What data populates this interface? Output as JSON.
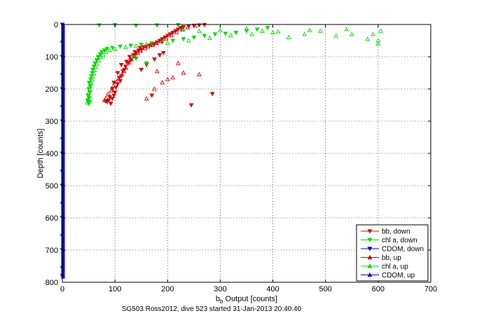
{
  "figure": {
    "caption": "SG503 Ross2012, dive 523 started 31-Jan-2013 20:40:40"
  },
  "colors": {
    "bb": "#dd0000",
    "chla": "#00dd00",
    "cdom": "#0000ff",
    "grid": "#000000",
    "axes": "#000000"
  },
  "chart_data": {
    "type": "scatter",
    "xlabel_main": "b",
    "xlabel_sub": "b",
    "xlabel_rest": " Output [counts]",
    "ylabel": "Depth [counts]",
    "xlim": [
      0,
      700
    ],
    "ylim": [
      0,
      800
    ],
    "y_reversed": true,
    "grid": true,
    "legend_position": "bottom-right",
    "x_ticks": [
      0,
      100,
      200,
      300,
      400,
      500,
      600,
      700
    ],
    "y_ticks": [
      0,
      100,
      200,
      300,
      400,
      500,
      600,
      700,
      800
    ],
    "series": [
      {
        "name": "bb, down",
        "color": "#dd0000",
        "marker": "triangle-down",
        "points": [
          [
            85,
            240
          ],
          [
            88,
            235
          ],
          [
            92,
            245
          ],
          [
            95,
            230
          ],
          [
            82,
            238
          ],
          [
            90,
            225
          ],
          [
            98,
            220
          ],
          [
            100,
            210
          ],
          [
            95,
            200
          ],
          [
            102,
            195
          ],
          [
            105,
            185
          ],
          [
            98,
            180
          ],
          [
            110,
            175
          ],
          [
            108,
            165
          ],
          [
            112,
            160
          ],
          [
            105,
            150
          ],
          [
            115,
            145
          ],
          [
            118,
            140
          ],
          [
            120,
            130
          ],
          [
            112,
            125
          ],
          [
            125,
            120
          ],
          [
            122,
            115
          ],
          [
            130,
            110
          ],
          [
            128,
            100
          ],
          [
            135,
            95
          ],
          [
            140,
            90
          ],
          [
            138,
            85
          ],
          [
            145,
            80
          ],
          [
            150,
            78
          ],
          [
            148,
            72
          ],
          [
            155,
            70
          ],
          [
            160,
            68
          ],
          [
            165,
            65
          ],
          [
            170,
            62
          ],
          [
            175,
            60
          ],
          [
            180,
            55
          ],
          [
            185,
            50
          ],
          [
            190,
            45
          ],
          [
            195,
            40
          ],
          [
            200,
            35
          ],
          [
            205,
            30
          ],
          [
            210,
            25
          ],
          [
            215,
            20
          ],
          [
            220,
            15
          ],
          [
            225,
            10
          ],
          [
            230,
            8
          ],
          [
            240,
            5
          ],
          [
            250,
            3
          ],
          [
            260,
            2
          ],
          [
            270,
            1
          ],
          [
            245,
            250
          ],
          [
            170,
            220
          ],
          [
            285,
            215
          ],
          [
            150,
            140
          ],
          [
            160,
            125
          ],
          [
            175,
            108
          ],
          [
            185,
            95
          ],
          [
            192,
            88
          ]
        ]
      },
      {
        "name": "chl a, down",
        "color": "#00dd00",
        "marker": "triangle-down",
        "points": [
          [
            50,
            245
          ],
          [
            52,
            240
          ],
          [
            48,
            235
          ],
          [
            51,
            228
          ],
          [
            49,
            220
          ],
          [
            52,
            210
          ],
          [
            50,
            200
          ],
          [
            53,
            190
          ],
          [
            51,
            180
          ],
          [
            54,
            170
          ],
          [
            55,
            160
          ],
          [
            57,
            150
          ],
          [
            58,
            140
          ],
          [
            60,
            130
          ],
          [
            62,
            120
          ],
          [
            65,
            110
          ],
          [
            68,
            100
          ],
          [
            72,
            92
          ],
          [
            75,
            85
          ],
          [
            80,
            80
          ],
          [
            85,
            75
          ],
          [
            95,
            72
          ],
          [
            110,
            68
          ],
          [
            130,
            65
          ],
          [
            150,
            62
          ],
          [
            170,
            58
          ],
          [
            190,
            55
          ],
          [
            210,
            50
          ],
          [
            230,
            45
          ],
          [
            250,
            40
          ],
          [
            270,
            35
          ],
          [
            290,
            30
          ],
          [
            310,
            28
          ],
          [
            330,
            25
          ],
          [
            350,
            20
          ],
          [
            370,
            15
          ],
          [
            390,
            10
          ],
          [
            70,
            2
          ],
          [
            100,
            1
          ],
          [
            140,
            3
          ],
          [
            180,
            2
          ],
          [
            220,
            1
          ],
          [
            140,
            105
          ],
          [
            160,
            120
          ],
          [
            135,
            100
          ]
        ]
      },
      {
        "name": "CDOM, down",
        "color": "#0000ff",
        "marker": "triangle-down",
        "points": [
          [
            0,
            0
          ],
          [
            0,
            100
          ],
          [
            0,
            200
          ],
          [
            0,
            300
          ],
          [
            0,
            400
          ],
          [
            0,
            500
          ],
          [
            0,
            600
          ],
          [
            0,
            700
          ],
          [
            0,
            780
          ]
        ]
      },
      {
        "name": "bb, up",
        "color": "#dd0000",
        "marker": "triangle-up",
        "points": [
          [
            80,
            235
          ],
          [
            83,
            228
          ],
          [
            87,
            215
          ],
          [
            93,
            205
          ],
          [
            97,
            190
          ],
          [
            103,
            178
          ],
          [
            107,
            168
          ],
          [
            113,
            155
          ],
          [
            117,
            145
          ],
          [
            121,
            135
          ],
          [
            127,
            118
          ],
          [
            131,
            108
          ],
          [
            137,
            98
          ],
          [
            143,
            88
          ],
          [
            149,
            82
          ],
          [
            157,
            74
          ],
          [
            163,
            69
          ],
          [
            171,
            64
          ],
          [
            179,
            58
          ],
          [
            187,
            52
          ],
          [
            197,
            44
          ],
          [
            207,
            34
          ],
          [
            217,
            24
          ],
          [
            228,
            16
          ],
          [
            238,
            9
          ],
          [
            252,
            4
          ],
          [
            160,
            230
          ],
          [
            175,
            200
          ],
          [
            190,
            180
          ],
          [
            200,
            170
          ],
          [
            210,
            165
          ],
          [
            230,
            150
          ],
          [
            260,
            155
          ],
          [
            180,
            145
          ],
          [
            220,
            120
          ]
        ]
      },
      {
        "name": "chl a, up",
        "color": "#00dd00",
        "marker": "triangle-up",
        "points": [
          [
            47,
            243
          ],
          [
            49,
            232
          ],
          [
            51,
            222
          ],
          [
            50,
            212
          ],
          [
            53,
            202
          ],
          [
            52,
            192
          ],
          [
            55,
            182
          ],
          [
            56,
            172
          ],
          [
            58,
            162
          ],
          [
            60,
            152
          ],
          [
            61,
            142
          ],
          [
            63,
            132
          ],
          [
            66,
            122
          ],
          [
            69,
            112
          ],
          [
            73,
            102
          ],
          [
            77,
            94
          ],
          [
            83,
            86
          ],
          [
            90,
            80
          ],
          [
            100,
            76
          ],
          [
            120,
            70
          ],
          [
            140,
            66
          ],
          [
            160,
            61
          ],
          [
            200,
            57
          ],
          [
            240,
            50
          ],
          [
            280,
            42
          ],
          [
            320,
            34
          ],
          [
            360,
            30
          ],
          [
            400,
            25
          ],
          [
            430,
            40
          ],
          [
            460,
            30
          ],
          [
            490,
            20
          ],
          [
            520,
            35
          ],
          [
            550,
            30
          ],
          [
            580,
            45
          ],
          [
            600,
            50
          ],
          [
            605,
            20
          ],
          [
            590,
            30
          ],
          [
            600,
            60
          ],
          [
            540,
            15
          ],
          [
            470,
            18
          ],
          [
            410,
            22
          ],
          [
            380,
            20
          ],
          [
            350,
            12
          ],
          [
            300,
            18
          ],
          [
            260,
            20
          ],
          [
            230,
            15
          ]
        ]
      },
      {
        "name": "CDOM, up",
        "color": "#0000ff",
        "marker": "triangle-up",
        "points": [
          [
            0,
            50
          ],
          [
            0,
            150
          ],
          [
            0,
            250
          ],
          [
            0,
            350
          ],
          [
            0,
            450
          ],
          [
            0,
            550
          ],
          [
            0,
            650
          ],
          [
            0,
            750
          ]
        ]
      }
    ]
  }
}
